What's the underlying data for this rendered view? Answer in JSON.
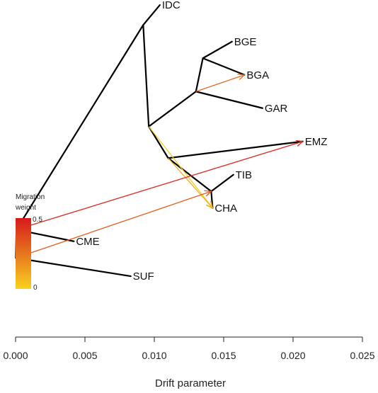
{
  "chart_data": {
    "type": "treemix-tree",
    "title": "",
    "xlabel": "Drift parameter",
    "ylabel": "",
    "xlim": [
      0.0,
      0.025
    ],
    "x_ticks": [
      "0.000",
      "0.005",
      "0.010",
      "0.015",
      "0.020",
      "0.025"
    ],
    "x_tick_values": [
      0.0,
      0.005,
      0.01,
      0.015,
      0.02,
      0.025
    ],
    "grid": false,
    "nodes": [
      {
        "id": "n1",
        "x": 2e-05,
        "y": 0.775
      },
      {
        "id": "n2",
        "x": 6e-05,
        "y": 0.69
      },
      {
        "id": "n3",
        "x": 0.0092,
        "y": 0.075
      },
      {
        "id": "n4",
        "x": 0.0096,
        "y": 0.38
      },
      {
        "id": "n5",
        "x": 0.013,
        "y": 0.275
      },
      {
        "id": "n6",
        "x": 0.0135,
        "y": 0.175
      },
      {
        "id": "n7",
        "x": 0.011,
        "y": 0.475
      },
      {
        "id": "n8",
        "x": 0.0141,
        "y": 0.575
      },
      {
        "id": "IDC",
        "x": 0.0104,
        "y": 0.015,
        "label": "IDC"
      },
      {
        "id": "BGE",
        "x": 0.0156,
        "y": 0.125,
        "label": "BGE"
      },
      {
        "id": "BGA",
        "x": 0.0165,
        "y": 0.225,
        "label": "BGA"
      },
      {
        "id": "GAR",
        "x": 0.0178,
        "y": 0.325,
        "label": "GAR"
      },
      {
        "id": "EMZ",
        "x": 0.0207,
        "y": 0.425,
        "label": "EMZ"
      },
      {
        "id": "TIB",
        "x": 0.0157,
        "y": 0.525,
        "label": "TIB"
      },
      {
        "id": "CHA",
        "x": 0.0142,
        "y": 0.625,
        "label": "CHA"
      },
      {
        "id": "CME",
        "x": 0.0042,
        "y": 0.725,
        "label": "CME"
      },
      {
        "id": "SUF",
        "x": 0.0083,
        "y": 0.83,
        "label": "SUF"
      }
    ],
    "edges": [
      [
        "n1",
        "n2"
      ],
      [
        "n1",
        "SUF"
      ],
      [
        "n2",
        "n3"
      ],
      [
        "n2",
        "CME"
      ],
      [
        "n3",
        "IDC"
      ],
      [
        "n3",
        "n4"
      ],
      [
        "n4",
        "n5"
      ],
      [
        "n4",
        "n7"
      ],
      [
        "n5",
        "n6"
      ],
      [
        "n5",
        "GAR"
      ],
      [
        "n6",
        "BGE"
      ],
      [
        "n6",
        "BGA"
      ],
      [
        "n7",
        "EMZ"
      ],
      [
        "n7",
        "n8"
      ],
      [
        "n8",
        "TIB"
      ],
      [
        "n8",
        "CHA"
      ]
    ],
    "migrations": [
      {
        "from": "n5",
        "to": "BGA",
        "weight": 0.28
      },
      {
        "from": "n4",
        "to": "CHA",
        "weight": 0.02
      },
      {
        "from": "n7",
        "to": "CHA",
        "weight": 0.1
      },
      {
        "from": "n1",
        "to": "n8",
        "weight": 0.32
      },
      {
        "from": "n2",
        "to": "EMZ",
        "weight": 0.46
      }
    ],
    "legend": {
      "title_line1": "Migration",
      "title_line2": "weight",
      "max_label": "0.5",
      "min_label": "0",
      "max_value": 0.5,
      "color_low": "#f7d21f",
      "color_high": "#d7191c"
    },
    "colors": {
      "tree": "#000000",
      "axis": "#222222"
    }
  }
}
